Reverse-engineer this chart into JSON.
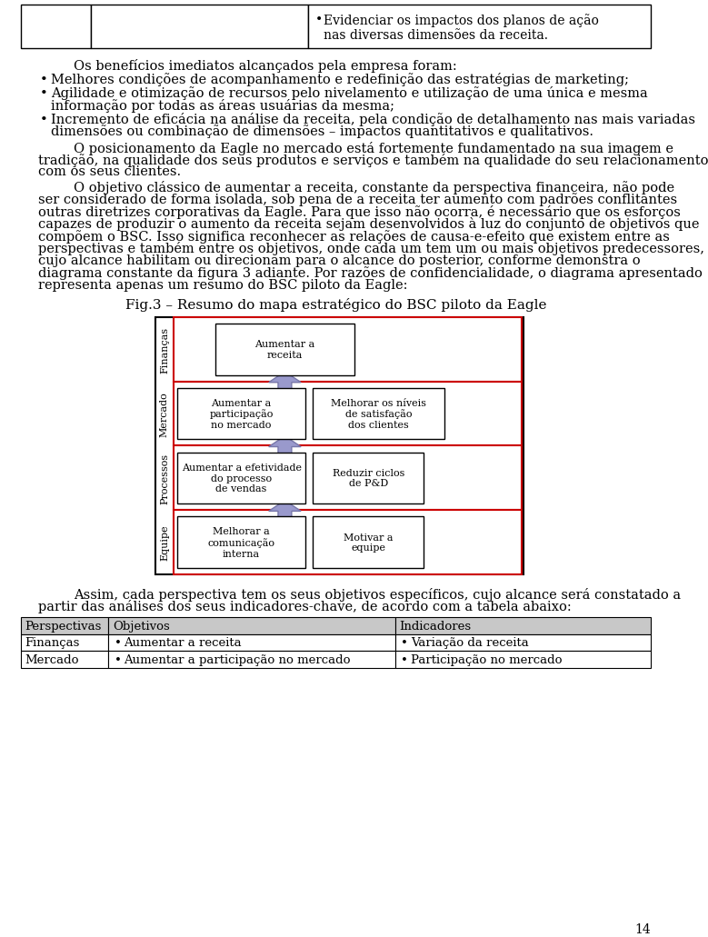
{
  "page_bg": "#ffffff",
  "top_table_col3": "Evidenciar os impactos dos planos de ação\nnas diversas dimensões da receita.",
  "para0": "Os benefícios imediatos alcançados pela empresa foram:",
  "para1": "Melhores condições de acompanhamento e redefinição das estratégias de marketing;",
  "para2a": "Agilidade e otimização de recursos pelo nivelamento e utilização de uma única e mesma",
  "para2b": "informação por todas as áreas usuárias da mesma;",
  "para3a": "Incremento de eficácia na análise da receita, pela condição de detalhamento nas mais variadas",
  "para3b": "dimensões ou combinação de dimensões – impactos quantitativos e qualitativos.",
  "para4a": "O posicionamento da Eagle no mercado está fortemente fundamentado na sua imagem e",
  "para4b": "tradição, na qualidade dos seus produtos e serviços e também na qualidade do seu relacionamento",
  "para4c": "com os seus clientes.",
  "para5a": "O objetivo clássico de aumentar a receita, constante da perspectiva financeira, não pode",
  "para5b": "ser considerado de forma isolada, sob pena de a receita ter aumento com padrões conflitantes",
  "para5c": "outras diretrizes corporativas da Eagle. Para que isso não ocorra, é necessário que os esforços",
  "para5d": "capazes de produzir o aumento da receita sejam desenvolvidos à luz do conjunto de objetivos que",
  "para5e": "compõem o BSC. Isso significa reconhecer as relações de causa-e-efeito que existem entre as",
  "para5f": "perspectivas e também entre os objetivos, onde cada um tem um ou mais objetivos predecessores,",
  "para5g": "cujo alcance habilitam ou direcionam para o alcance do posterior, conforme demonstra o",
  "para5h": "diagrama constante da figura 3 adiante. Por razões de confidencialidade, o diagrama apresentado",
  "para5i": "representa apenas um resumo do BSC piloto da Eagle:",
  "fig_caption": "Fig.3 – Resumo do mapa estratégico do BSC piloto da Eagle",
  "bottom_text_a": "Assim, cada perspectiva tem os seus objetivos específicos, cujo alcance será constatado a",
  "bottom_text_b": "partir das análises dos seus indicadores-chave, de acordo com a tabela abaixo:",
  "tbl_h": [
    "Perspectivas",
    "Objetivos",
    "Indicadores"
  ],
  "tbl_r1": [
    "Finanças",
    "Aumentar a receita",
    "Variação da receita"
  ],
  "tbl_r2": [
    "Mercado",
    "Aumentar a participação no mercado",
    "Participação no mercado"
  ],
  "page_number": "14",
  "arrow_color": "#9999cc",
  "arrow_edge": "#7777aa",
  "red": "#cc0000",
  "black": "#000000",
  "white": "#ffffff",
  "gray_header": "#c8c8c8"
}
